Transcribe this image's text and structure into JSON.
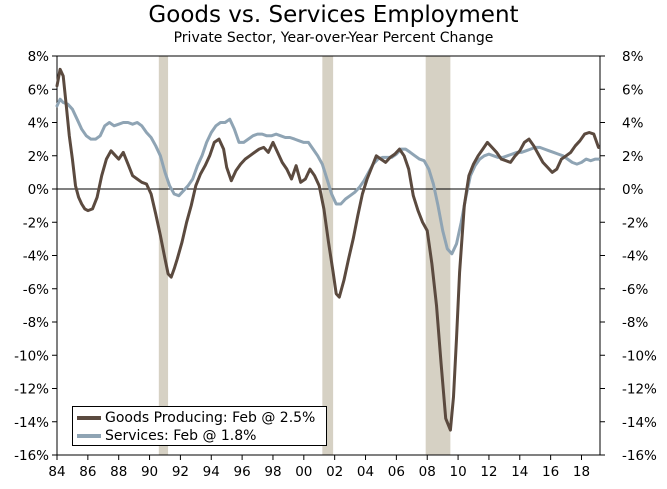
{
  "chart_data": {
    "type": "line",
    "title": "Goods vs. Services Employment",
    "subtitle": "Private Sector, Year-over-Year Percent Change",
    "ylim": [
      -16,
      8
    ],
    "y_ticks": [
      8,
      6,
      4,
      2,
      0,
      -2,
      -4,
      -6,
      -8,
      -10,
      -12,
      -14,
      -16
    ],
    "y_tick_labels": [
      "8%",
      "6%",
      "4%",
      "2%",
      "0%",
      "-2%",
      "-4%",
      "-6%",
      "-8%",
      "-10%",
      "-12%",
      "-14%",
      "-16%"
    ],
    "xlim": [
      1984,
      2019.2
    ],
    "x_ticks": [
      1984,
      1986,
      1988,
      1990,
      1992,
      1994,
      1996,
      1998,
      2000,
      2002,
      2004,
      2006,
      2008,
      2010,
      2012,
      2014,
      2016,
      2018
    ],
    "x_tick_labels": [
      "84",
      "86",
      "88",
      "90",
      "92",
      "94",
      "96",
      "98",
      "00",
      "02",
      "04",
      "06",
      "08",
      "10",
      "12",
      "14",
      "16",
      "18"
    ],
    "recessions": [
      [
        1990.6,
        1991.2
      ],
      [
        2001.2,
        2001.9
      ],
      [
        2007.9,
        2009.5
      ]
    ],
    "colors": {
      "goods": "#5b4a3f",
      "services": "#8fa4b4",
      "recession": "#d6d1c4"
    },
    "series": [
      {
        "name": "Goods Producing: Feb @ 2.5%",
        "color": "#5b4a3f",
        "x": [
          1984.0,
          1984.2,
          1984.4,
          1984.6,
          1984.8,
          1985.0,
          1985.2,
          1985.4,
          1985.6,
          1985.8,
          1986.0,
          1986.3,
          1986.6,
          1986.9,
          1987.2,
          1987.5,
          1987.8,
          1988.0,
          1988.3,
          1988.6,
          1988.9,
          1989.2,
          1989.5,
          1989.8,
          1990.1,
          1990.4,
          1990.7,
          1991.0,
          1991.2,
          1991.4,
          1991.6,
          1991.8,
          1992.1,
          1992.4,
          1992.7,
          1993.0,
          1993.3,
          1993.6,
          1993.9,
          1994.2,
          1994.5,
          1994.8,
          1995.0,
          1995.3,
          1995.6,
          1995.9,
          1996.2,
          1996.5,
          1996.8,
          1997.1,
          1997.4,
          1997.7,
          1998.0,
          1998.3,
          1998.6,
          1998.9,
          1999.2,
          1999.5,
          1999.8,
          2000.1,
          2000.4,
          2000.7,
          2001.0,
          2001.3,
          2001.6,
          2001.9,
          2002.1,
          2002.3,
          2002.6,
          2002.9,
          2003.2,
          2003.5,
          2003.8,
          2004.1,
          2004.4,
          2004.7,
          2005.0,
          2005.3,
          2005.6,
          2005.9,
          2006.2,
          2006.5,
          2006.8,
          2007.1,
          2007.4,
          2007.7,
          2008.0,
          2008.3,
          2008.6,
          2008.9,
          2009.2,
          2009.5,
          2009.7,
          2009.9,
          2010.1,
          2010.4,
          2010.7,
          2011.0,
          2011.3,
          2011.6,
          2011.9,
          2012.2,
          2012.5,
          2012.8,
          2013.1,
          2013.4,
          2013.7,
          2014.0,
          2014.3,
          2014.6,
          2014.9,
          2015.2,
          2015.5,
          2015.8,
          2016.1,
          2016.4,
          2016.7,
          2017.0,
          2017.3,
          2017.6,
          2017.9,
          2018.2,
          2018.5,
          2018.8,
          2019.1
        ],
        "values": [
          6.2,
          7.2,
          6.8,
          5.0,
          3.2,
          1.8,
          0.2,
          -0.5,
          -0.9,
          -1.2,
          -1.3,
          -1.2,
          -0.5,
          0.8,
          1.8,
          2.3,
          2.0,
          1.8,
          2.2,
          1.5,
          0.8,
          0.6,
          0.4,
          0.3,
          -0.3,
          -1.5,
          -2.8,
          -4.2,
          -5.1,
          -5.3,
          -4.8,
          -4.2,
          -3.2,
          -2.0,
          -1.0,
          0.2,
          0.9,
          1.4,
          2.0,
          2.8,
          3.0,
          2.4,
          1.3,
          0.5,
          1.1,
          1.5,
          1.8,
          2.0,
          2.2,
          2.4,
          2.5,
          2.2,
          2.8,
          2.2,
          1.6,
          1.2,
          0.6,
          1.4,
          0.4,
          0.6,
          1.2,
          0.8,
          0.2,
          -1.2,
          -3.2,
          -5.0,
          -6.3,
          -6.5,
          -5.5,
          -4.2,
          -3.0,
          -1.6,
          -0.3,
          0.6,
          1.3,
          2.0,
          1.8,
          1.6,
          1.9,
          2.1,
          2.4,
          2.0,
          1.2,
          -0.4,
          -1.3,
          -2.0,
          -2.5,
          -4.5,
          -7.0,
          -10.5,
          -13.8,
          -14.5,
          -12.5,
          -9.0,
          -5.0,
          -1.0,
          0.8,
          1.5,
          2.0,
          2.4,
          2.8,
          2.5,
          2.2,
          1.8,
          1.7,
          1.6,
          2.0,
          2.3,
          2.8,
          3.0,
          2.6,
          2.1,
          1.6,
          1.3,
          1.0,
          1.2,
          1.8,
          2.0,
          2.2,
          2.6,
          2.9,
          3.3,
          3.4,
          3.3,
          2.5
        ]
      },
      {
        "name": "Services: Feb @ 1.8%",
        "color": "#8fa4b4",
        "x": [
          1984.0,
          1984.2,
          1984.4,
          1984.7,
          1985.0,
          1985.3,
          1985.6,
          1985.9,
          1986.2,
          1986.5,
          1986.8,
          1987.1,
          1987.4,
          1987.7,
          1988.0,
          1988.3,
          1988.6,
          1988.9,
          1989.2,
          1989.5,
          1989.8,
          1990.1,
          1990.4,
          1990.7,
          1991.0,
          1991.3,
          1991.6,
          1991.9,
          1992.2,
          1992.5,
          1992.8,
          1993.1,
          1993.4,
          1993.7,
          1994.0,
          1994.3,
          1994.6,
          1994.9,
          1995.2,
          1995.5,
          1995.8,
          1996.1,
          1996.4,
          1996.7,
          1997.0,
          1997.3,
          1997.6,
          1997.9,
          1998.2,
          1998.5,
          1998.8,
          1999.1,
          1999.4,
          1999.7,
          2000.0,
          2000.3,
          2000.6,
          2000.9,
          2001.2,
          2001.5,
          2001.8,
          2002.1,
          2002.4,
          2002.7,
          2003.0,
          2003.3,
          2003.6,
          2003.9,
          2004.2,
          2004.5,
          2004.8,
          2005.1,
          2005.4,
          2005.7,
          2006.0,
          2006.3,
          2006.6,
          2006.9,
          2007.2,
          2007.5,
          2007.8,
          2008.1,
          2008.4,
          2008.7,
          2009.0,
          2009.3,
          2009.6,
          2009.9,
          2010.2,
          2010.5,
          2010.8,
          2011.1,
          2011.4,
          2011.7,
          2012.0,
          2012.3,
          2012.6,
          2012.9,
          2013.2,
          2013.5,
          2013.8,
          2014.1,
          2014.4,
          2014.7,
          2015.0,
          2015.3,
          2015.6,
          2015.9,
          2016.2,
          2016.5,
          2016.8,
          2017.1,
          2017.4,
          2017.7,
          2018.0,
          2018.3,
          2018.6,
          2018.9,
          2019.1
        ],
        "values": [
          5.0,
          5.4,
          5.2,
          5.1,
          4.8,
          4.2,
          3.6,
          3.2,
          3.0,
          3.0,
          3.2,
          3.8,
          4.0,
          3.8,
          3.9,
          4.0,
          4.0,
          3.9,
          4.0,
          3.8,
          3.4,
          3.1,
          2.6,
          2.0,
          1.0,
          0.2,
          -0.3,
          -0.4,
          -0.1,
          0.2,
          0.6,
          1.4,
          2.0,
          2.8,
          3.4,
          3.8,
          4.0,
          4.0,
          4.2,
          3.6,
          2.8,
          2.8,
          3.0,
          3.2,
          3.3,
          3.3,
          3.2,
          3.2,
          3.3,
          3.2,
          3.1,
          3.1,
          3.0,
          2.9,
          2.8,
          2.8,
          2.4,
          2.0,
          1.5,
          0.6,
          -0.3,
          -0.9,
          -0.9,
          -0.6,
          -0.4,
          -0.2,
          0.1,
          0.5,
          1.0,
          1.5,
          1.8,
          1.9,
          1.9,
          1.9,
          2.1,
          2.4,
          2.4,
          2.2,
          2.0,
          1.8,
          1.7,
          1.2,
          0.3,
          -1.0,
          -2.5,
          -3.6,
          -3.9,
          -3.3,
          -2.0,
          -0.5,
          0.8,
          1.4,
          1.8,
          2.0,
          2.1,
          2.0,
          1.9,
          1.9,
          2.0,
          2.1,
          2.2,
          2.2,
          2.3,
          2.4,
          2.5,
          2.5,
          2.4,
          2.3,
          2.2,
          2.1,
          2.0,
          1.8,
          1.6,
          1.5,
          1.6,
          1.8,
          1.7,
          1.8,
          1.8
        ]
      }
    ]
  }
}
